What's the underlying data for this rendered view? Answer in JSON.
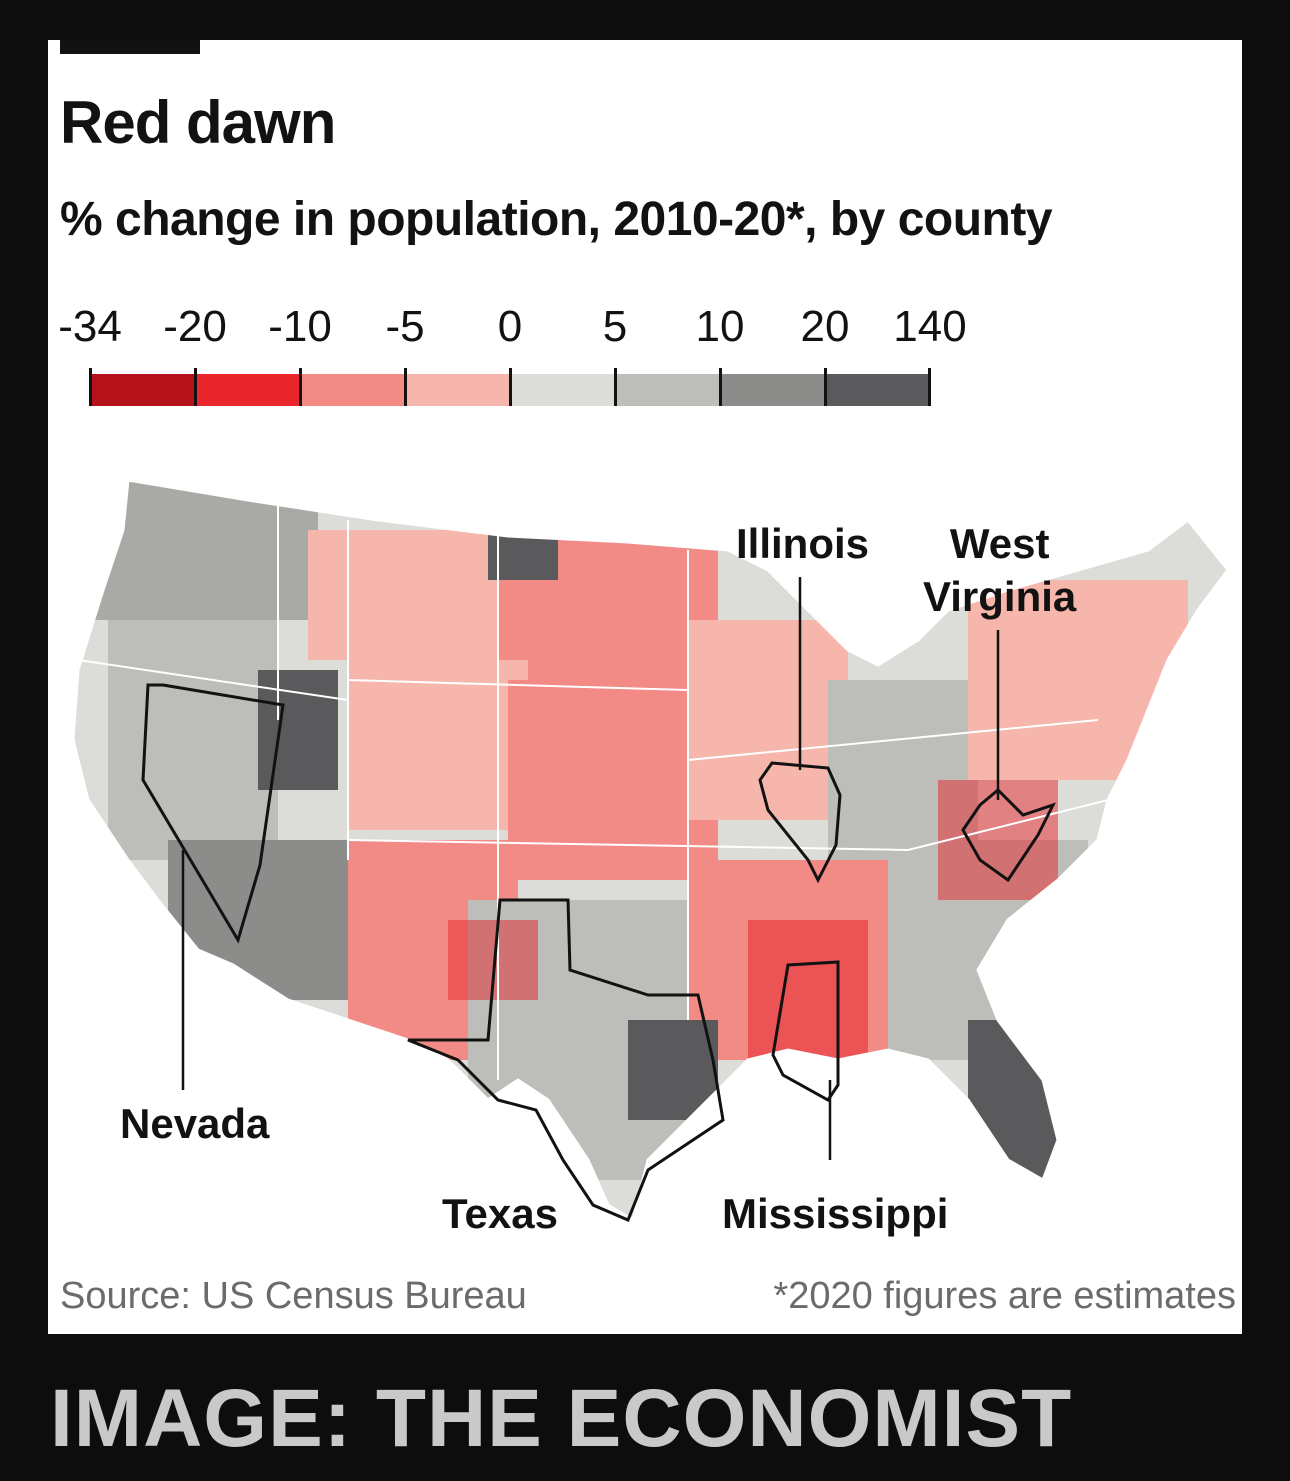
{
  "chart": {
    "title": "Red dawn",
    "subtitle": "% change in population, 2010-20*, by county",
    "source": "Source: US Census Bureau",
    "footnote": "*2020 figures are estimates"
  },
  "legend": {
    "ticks": [
      "-34",
      "-20",
      "-10",
      "-5",
      "0",
      "5",
      "10",
      "20",
      "140"
    ],
    "colors": [
      "#b5121b",
      "#e8262c",
      "#f28a86",
      "#f7b6ab",
      "#dcdcd8",
      "#bdbdb9",
      "#8c8c8a",
      "#5a5a5c"
    ]
  },
  "map": {
    "highlighted_states": [
      {
        "name": "Illinois",
        "label": "Illinois"
      },
      {
        "name": "West Virginia",
        "label_line1": "West",
        "label_line2": "Virginia"
      },
      {
        "name": "Nevada",
        "label": "Nevada"
      },
      {
        "name": "Texas",
        "label": "Texas"
      },
      {
        "name": "Mississippi",
        "label": "Mississippi"
      }
    ]
  },
  "credit": "IMAGE: THE ECONOMIST"
}
